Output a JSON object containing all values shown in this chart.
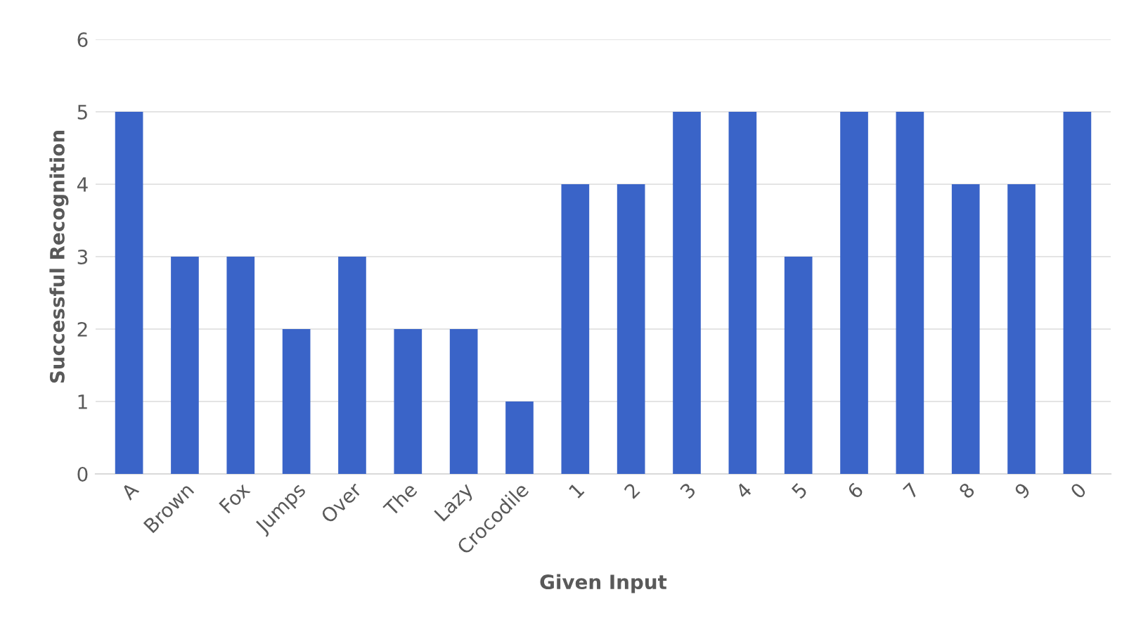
{
  "chart_data": {
    "type": "bar",
    "xlabel": "Given Input",
    "ylabel": "Successful Recognition",
    "categories": [
      "A",
      "Brown",
      "Fox",
      "Jumps",
      "Over",
      "The",
      "Lazy",
      "Crocodile",
      "1",
      "2",
      "3",
      "4",
      "5",
      "6",
      "7",
      "8",
      "9",
      "0"
    ],
    "values": [
      5,
      3,
      3,
      2,
      3,
      2,
      2,
      1,
      4,
      4,
      5,
      5,
      3,
      5,
      5,
      4,
      4,
      5
    ],
    "color": "#3a64c8",
    "ylim": [
      0,
      6
    ],
    "yticks": [
      0,
      1,
      2,
      3,
      4,
      5,
      6
    ],
    "grid": "y"
  }
}
